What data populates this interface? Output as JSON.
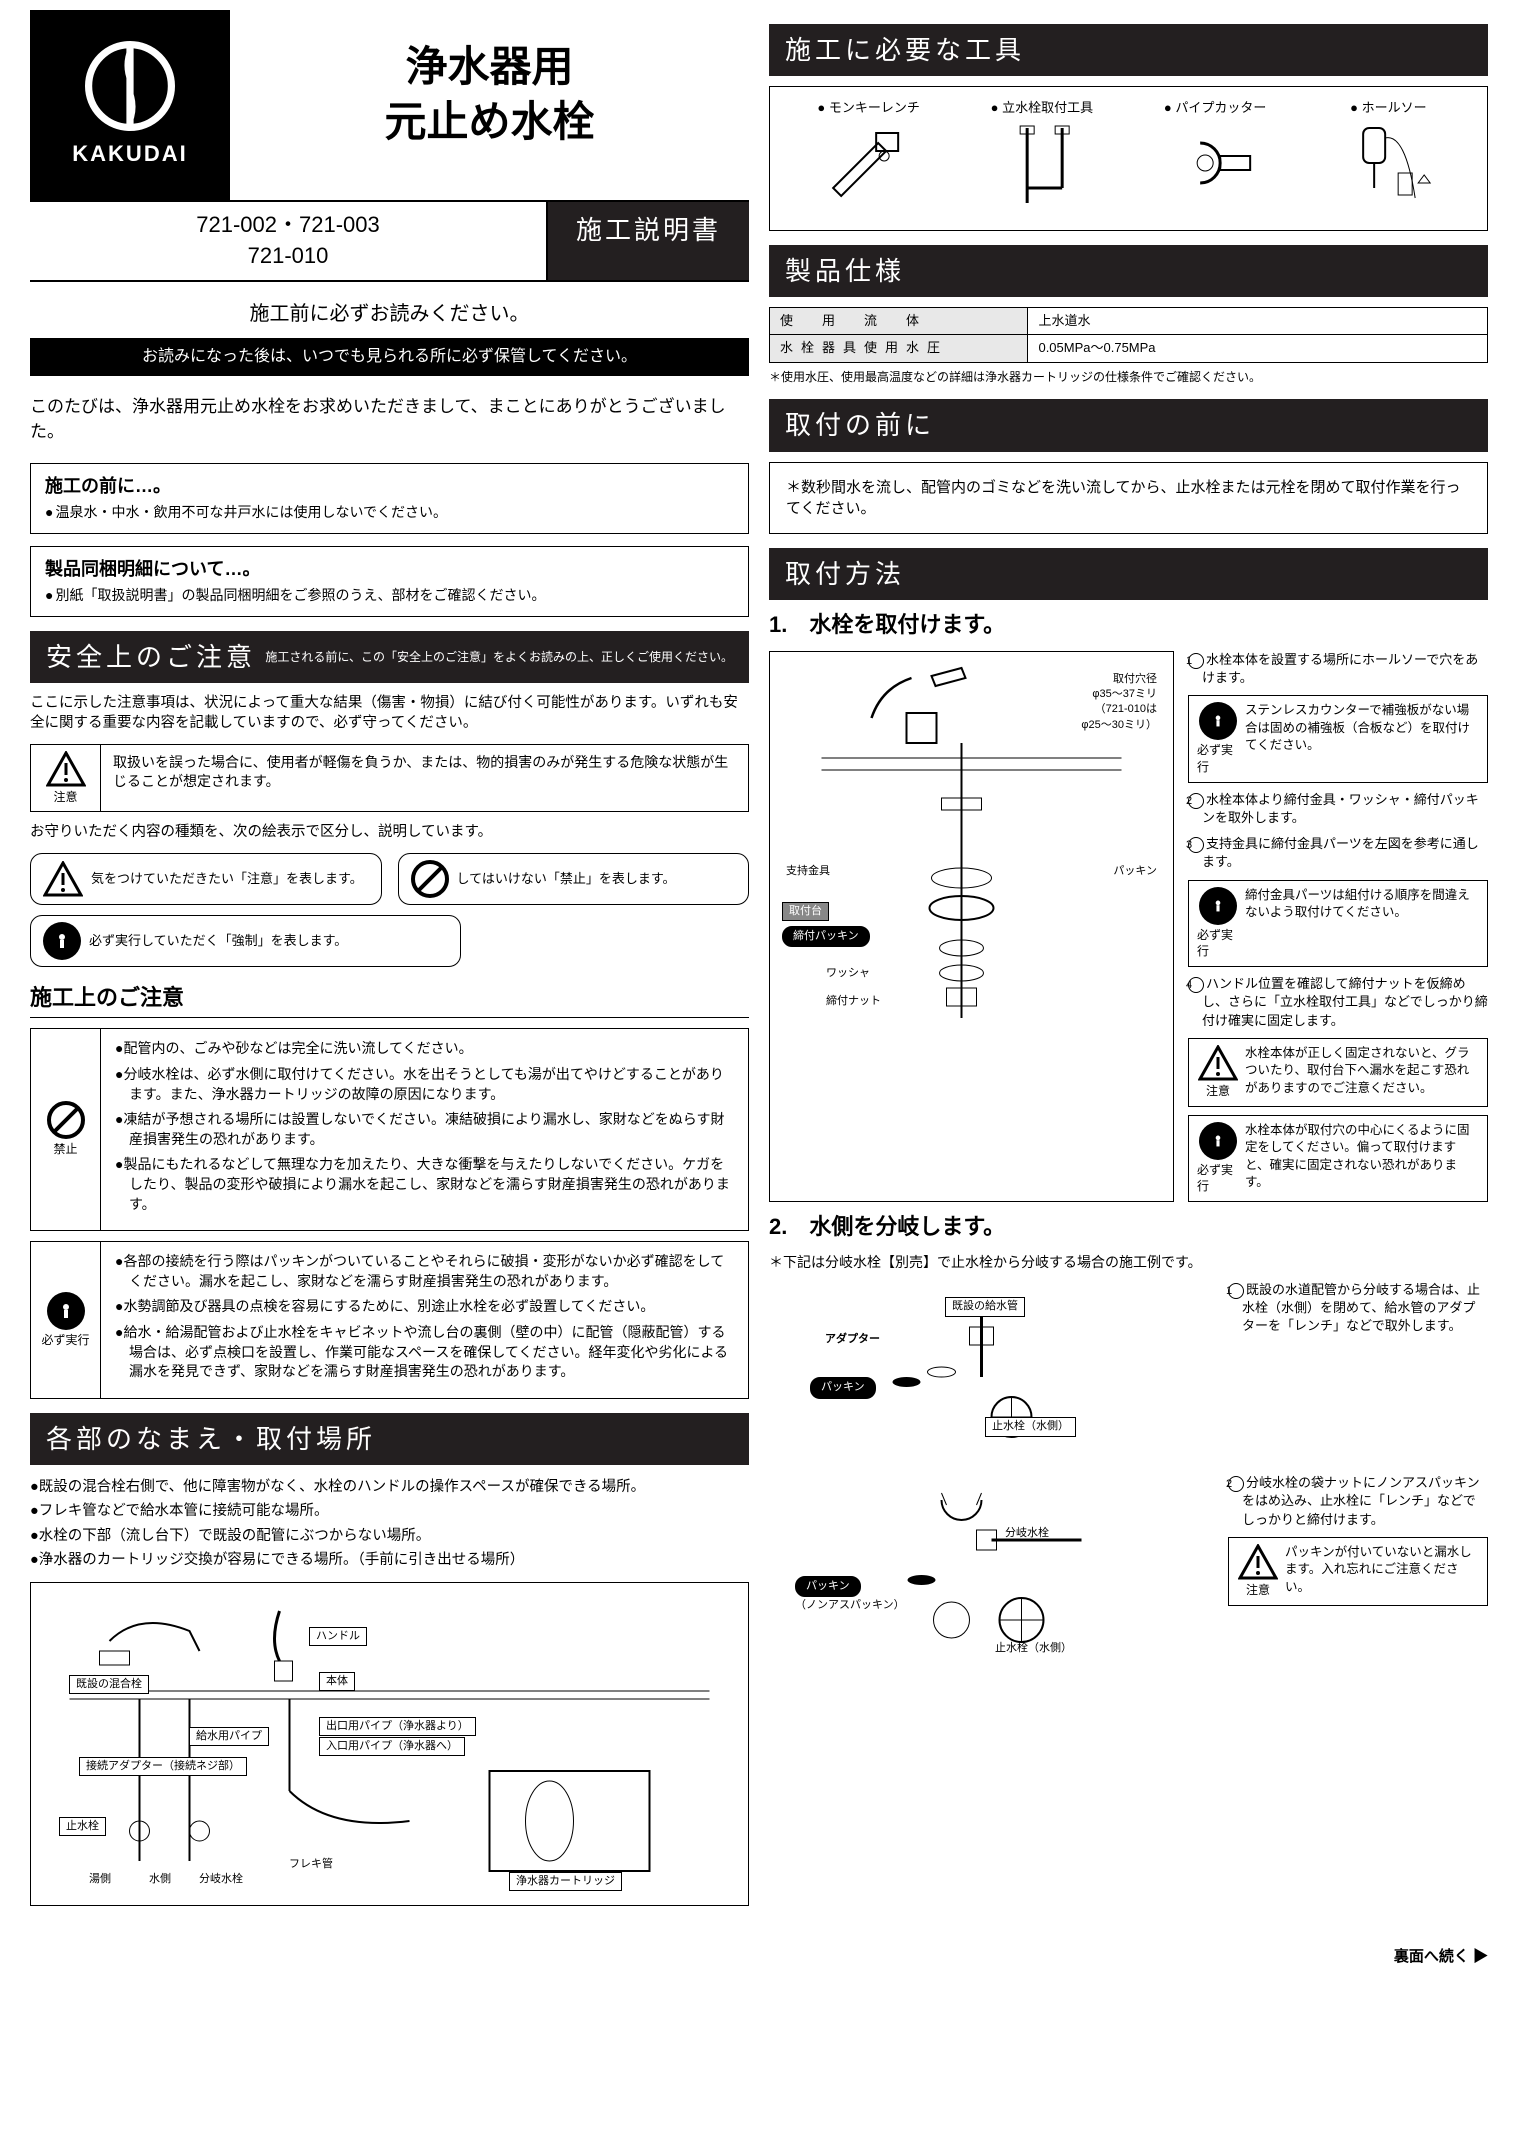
{
  "brand": "KAKUDAI",
  "title_line1": "浄水器用",
  "title_line2": "元止め水栓",
  "models_line1": "721-002・721-003",
  "models_line2": "721-010",
  "manual_label": "施工説明書",
  "pre_read": "施工前に必ずお読みください。",
  "keep_notice": "お読みになった後は、いつでも見られる所に必ず保管してください。",
  "thanks": "このたびは、浄水器用元止め水栓をお求めいただきまして、まことにありがとうございました。",
  "before_install": {
    "heading": "施工の前に…。",
    "bullet": "温泉水・中水・飲用不可な井戸水には使用しないでください。"
  },
  "included_parts": {
    "heading": "製品同梱明細について…。",
    "bullet": "別紙「取扱説明書」の製品同梱明細をご参照のうえ、部材をご確認ください。"
  },
  "safety_header": "安全上のご注意",
  "safety_header_sub": "施工される前に、この「安全上のご注意」をよくお読みの上、正しくご使用ください。",
  "safety_intro": "ここに示した注意事項は、状況によって重大な結果（傷害・物損）に結び付く可能性があります。いずれも安全に関する重要な内容を記載していますので、必ず守ってください。",
  "caution_label": "注意",
  "caution_text": "取扱いを誤った場合に、使用者が軽傷を負うか、または、物的損害のみが発生する危険な状態が生じることが想定されます。",
  "legend_intro": "お守りいただく内容の種類を、次の絵表示で区分し、説明しています。",
  "legend_caution": "気をつけていただきたい「注意」を表します。",
  "legend_prohibit": "してはいけない「禁止」を表します。",
  "legend_mandatory": "必ず実行していただく「強制」を表します。",
  "construction_cautions_header": "施工上のご注意",
  "prohibit_label": "禁止",
  "mandatory_label": "必ず実行",
  "prohibit_items": [
    "配管内の、ごみや砂などは完全に洗い流してください。",
    "分岐水栓は、必ず水側に取付けてください。水を出そうとしても湯が出てやけどすることがあります。また、浄水器カートリッジの故障の原因になります。",
    "凍結が予想される場所には設置しないでください。凍結破損により漏水し、家財などをぬらす財産損害発生の恐れがあります。",
    "製品にもたれるなどして無理な力を加えたり、大きな衝撃を与えたりしないでください。ケガをしたり、製品の変形や破損により漏水を起こし、家財などを濡らす財産損害発生の恐れがあります。"
  ],
  "mandatory_items": [
    "各部の接続を行う際はパッキンがついていることやそれらに破損・変形がないか必ず確認をしてください。漏水を起こし、家財などを濡らす財産損害発生の恐れがあります。",
    "水勢調節及び器具の点検を容易にするために、別途止水栓を必ず設置してください。",
    "給水・給湯配管および止水栓をキャビネットや流し台の裏側（壁の中）に配管（隠蔽配管）する場合は、必ず点検口を設置し、作業可能なスペースを確保してください。経年変化や劣化による漏水を発見できず、家財などを濡らす財産損害発生の恐れがあります。"
  ],
  "parts_header": "各部のなまえ・取付場所",
  "placement_items": [
    "既設の混合栓右側で、他に障害物がなく、水栓のハンドルの操作スペースが確保できる場所。",
    "フレキ管などで給水本管に接続可能な場所。",
    "水栓の下部（流し台下）で既設の配管にぶつからない場所。",
    "浄水器のカートリッジ交換が容易にできる場所。（手前に引き出せる場所）"
  ],
  "diagram_labels": {
    "existing_mixer": "既設の混合栓",
    "handle": "ハンドル",
    "body": "本体",
    "supply_pipe": "給水用パイプ",
    "outlet_pipe": "出口用パイプ（浄水器より）",
    "inlet_pipe": "入口用パイプ（浄水器へ）",
    "adapter": "接続アダプター（接続ネジ部）",
    "stop_valve": "止水栓",
    "hot": "湯側",
    "cold": "水側",
    "branch": "分岐水栓",
    "flexi": "フレキ管",
    "cartridge": "浄水器カートリッジ"
  },
  "tools_header": "施工に必要な工具",
  "tools": [
    "モンキーレンチ",
    "立水栓取付工具",
    "パイプカッター",
    "ホールソー"
  ],
  "spec_header": "製品仕様",
  "spec_rows": [
    {
      "label": "使　用　流　体",
      "value": "上水道水"
    },
    {
      "label": "水栓器具使用水圧",
      "value": "0.05MPa～0.75MPa"
    }
  ],
  "spec_note": "＊使用水圧、使用最高温度などの詳細は浄水器カートリッジの仕様条件でご確認ください。",
  "before_mount_header": "取付の前に",
  "before_mount_note": "＊数秒間水を流し、配管内のゴミなどを洗い流してから、止水栓または元栓を閉めて取付作業を行ってください。",
  "mount_header": "取付方法",
  "step1_title": "1.　水栓を取付けます。",
  "step1_hole": "取付穴径\nφ35～37ミリ\n（721-010は\nφ25～30ミリ）",
  "step1_parts": {
    "support": "支持金具",
    "mount": "取付台",
    "packing": "パッキン",
    "tighten_packing": "締付パッキン",
    "washer": "ワッシャ",
    "nut": "締付ナット"
  },
  "step1_notes_plain": [
    "水栓本体を設置する場所にホールソーで穴をあけます。",
    "水栓本体より締付金具・ワッシャ・締付パッキンを取外します。",
    "支持金具に締付金具パーツを左図を参考に通します。",
    "ハンドル位置を確認して締付ナットを仮締めし、さらに「立水栓取付工具」などでしっかり締付け確実に固定します。"
  ],
  "step1_ico_mandatory_counter": "ステンレスカウンターで補強板がない場合は固めの補強板（合板など）を取付けてください。",
  "step1_ico_mandatory_order": "締付金具パーツは組付ける順序を間違えないよう取付けてください。",
  "step1_ico_caution": "水栓本体が正しく固定されないと、グラついたり、取付台下へ漏水を起こす恐れがありますのでご注意ください。",
  "step1_ico_mandatory_center": "水栓本体が取付穴の中心にくるように固定をしてください。偏って取付けますと、確実に固定されない恐れがあります。",
  "step2_title": "2.　水側を分岐します。",
  "step2_sub": "＊下記は分岐水栓【別売】で止水栓から分岐する場合の施工例です。",
  "step2_labels": {
    "existing_supply": "既設の給水管",
    "adapter": "アダプター",
    "packing": "パッキン",
    "nonas_packing": "（ノンアスパッキン）",
    "stop_cold": "止水栓（水側）",
    "branch": "分岐水栓"
  },
  "step2_note1": "既設の水道配管から分岐する場合は、止水栓（水側）を閉めて、給水管のアダプターを「レンチ」などで取外します。",
  "step2_note2": "分岐水栓の袋ナットにノンアスパッキンをはめ込み、止水栓に「レンチ」などでしっかりと締付けます。",
  "step2_ico_caution": "パッキンが付いていないと漏水します。入れ忘れにご注意ください。",
  "continue": "裏面へ続く ▶",
  "colors": {
    "black": "#000000",
    "header_bg": "#231f20",
    "gray_cell": "#e8e8e8"
  }
}
